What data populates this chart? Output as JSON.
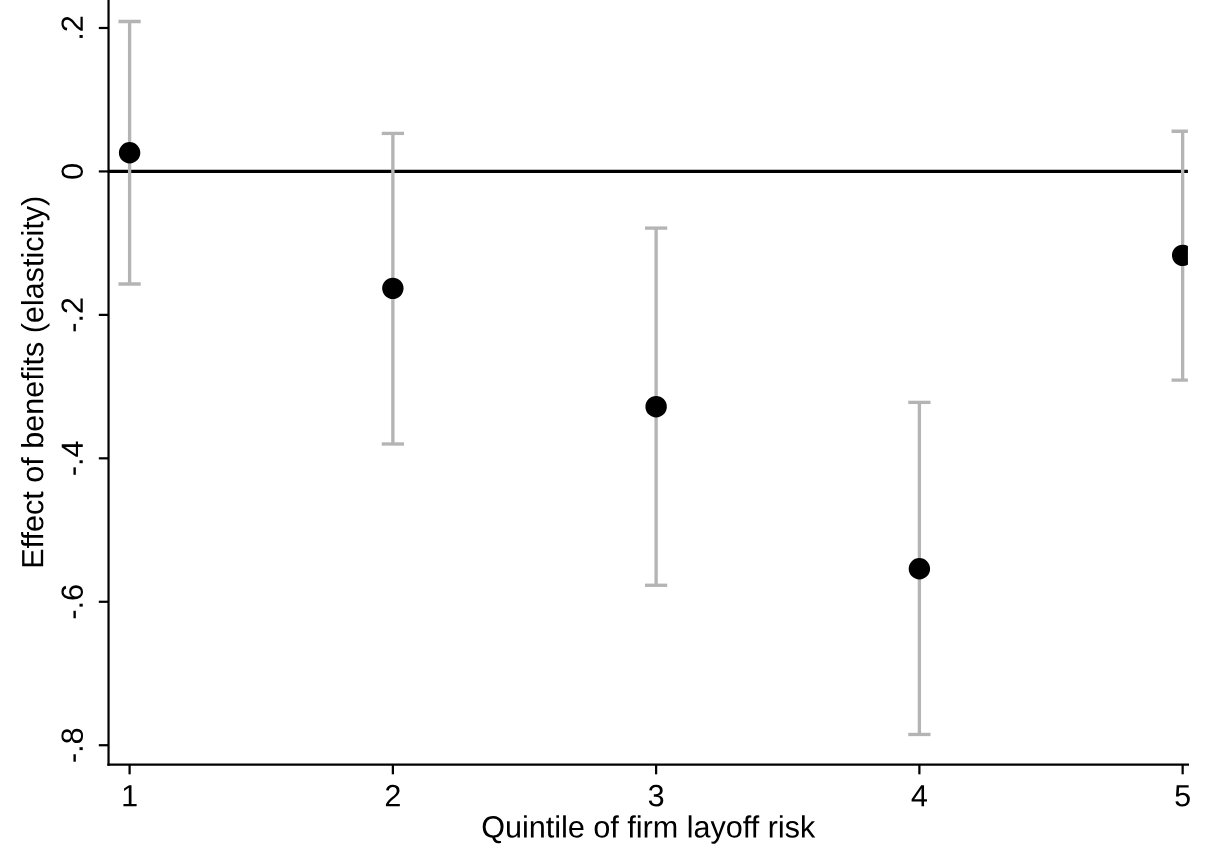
{
  "chart_data": {
    "type": "scatter",
    "xlabel": "Quintile of firm layoff risk",
    "ylabel": "Effect of benefits (elasticity)",
    "x": [
      1,
      2,
      3,
      4,
      5
    ],
    "series": [
      {
        "color": "#000000",
        "values": [
          0.026,
          -0.163,
          -0.328,
          -0.554,
          -0.117
        ],
        "errors": [
          [
            -0.157,
            0.209
          ],
          [
            -0.38,
            0.053
          ],
          [
            -0.577,
            -0.079
          ],
          [
            -0.785,
            -0.322
          ],
          [
            -0.291,
            0.056
          ]
        ]
      }
    ],
    "marker": "circle",
    "xlim": [
      0.92,
      5.02
    ],
    "ylim": [
      -0.827,
      0.239
    ],
    "xticks": [
      1,
      2,
      3,
      4,
      5
    ],
    "yticks": [
      {
        "value": 0.2,
        "label": ".2"
      },
      0,
      {
        "value": -0.2,
        "label": "-.2"
      },
      {
        "value": -0.4,
        "label": "-.4"
      },
      {
        "value": -0.6,
        "label": "-.6"
      },
      {
        "value": -0.8,
        "label": "-.8"
      }
    ],
    "ref_lines": [
      {
        "axis": "y",
        "value": 0,
        "color": "#000000"
      }
    ],
    "grid": false,
    "legend": false
  }
}
